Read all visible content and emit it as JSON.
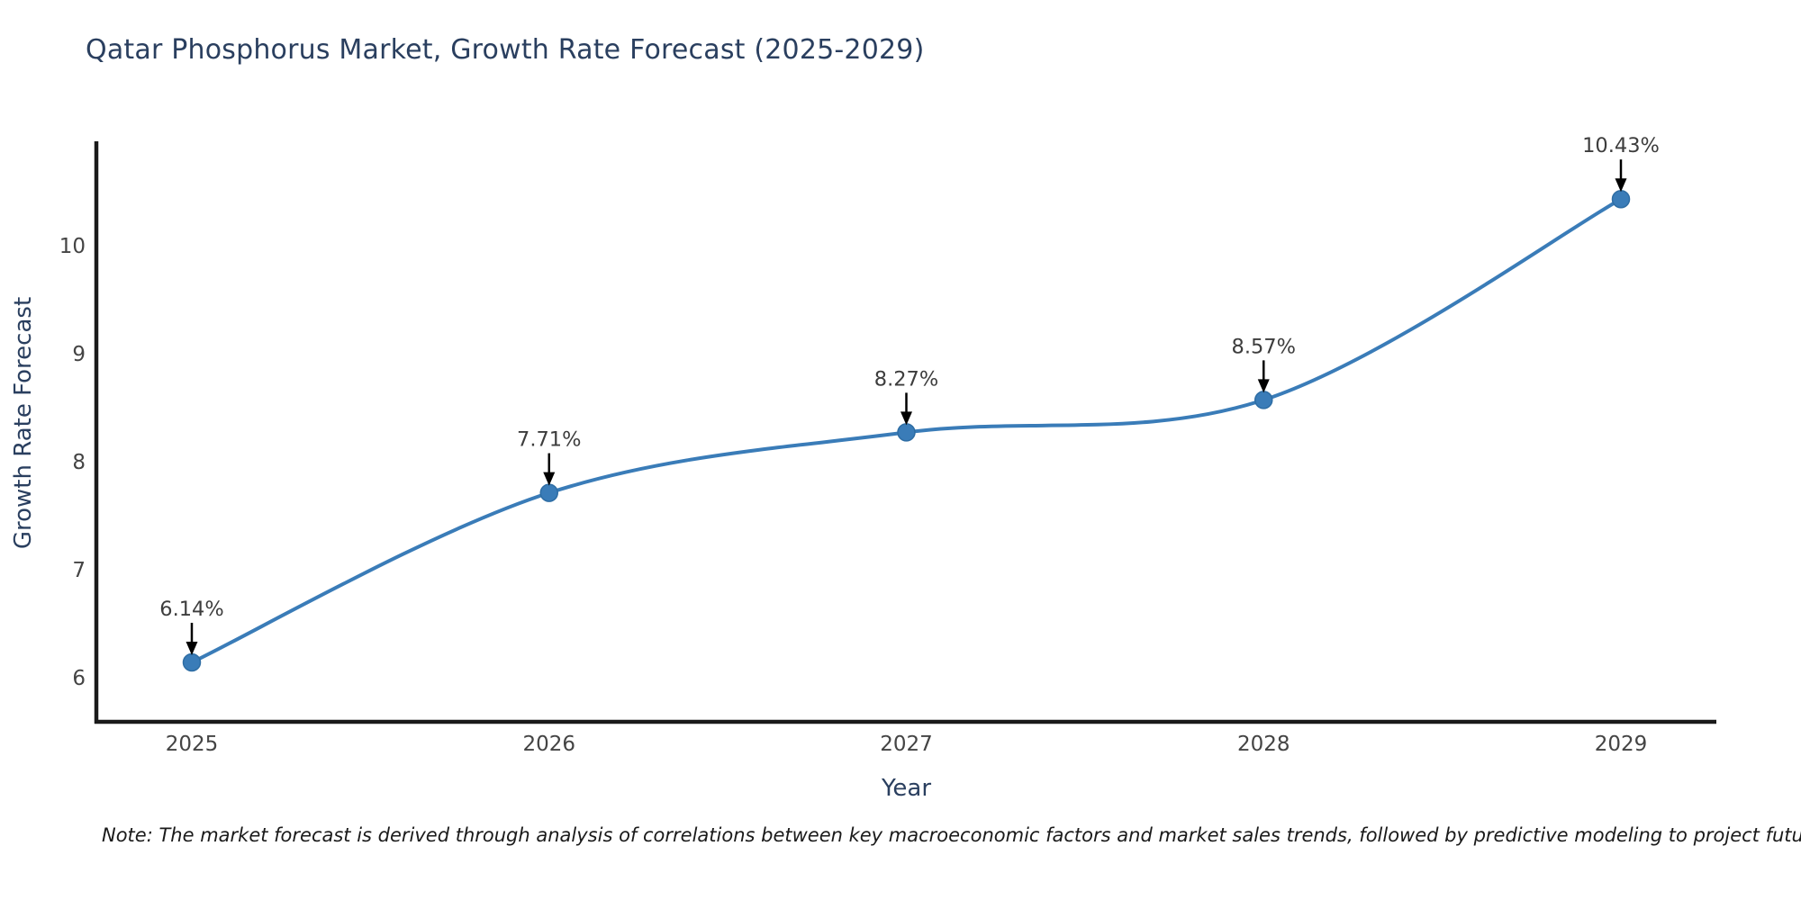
{
  "title": "Qatar Phosphorus Market, Growth Rate Forecast (2025-2029)",
  "note": "Note: The market forecast is derived through analysis of correlations between key macroeconomic factors and market sales trends, followed by predictive modeling to project future sales",
  "chart_data": {
    "type": "line",
    "line_shape": "spline",
    "x": [
      "2025",
      "2026",
      "2027",
      "2028",
      "2029"
    ],
    "values": [
      6.14,
      7.71,
      8.27,
      8.57,
      10.43
    ],
    "point_labels": [
      "6.14%",
      "7.71%",
      "8.27%",
      "8.57%",
      "10.43%"
    ],
    "xlabel": "Year",
    "ylabel": "Growth Rate Forecast",
    "y_ticks": [
      6,
      7,
      8,
      9,
      10
    ],
    "ylim": [
      5.59,
      10.97
    ],
    "grid": false,
    "legend": false,
    "annotations_have_arrows": true,
    "colors": {
      "line": "#3a7cb8",
      "marker": "#3a7cb8",
      "marker_edge": "#2e6da4",
      "axis": "#1a1a1a",
      "title": "#2a3f5f",
      "axis_title": "#2a3f5f",
      "tick": "#444444",
      "annotation": "#3d3d3d",
      "arrow": "#000000",
      "background": "#ffffff"
    }
  }
}
